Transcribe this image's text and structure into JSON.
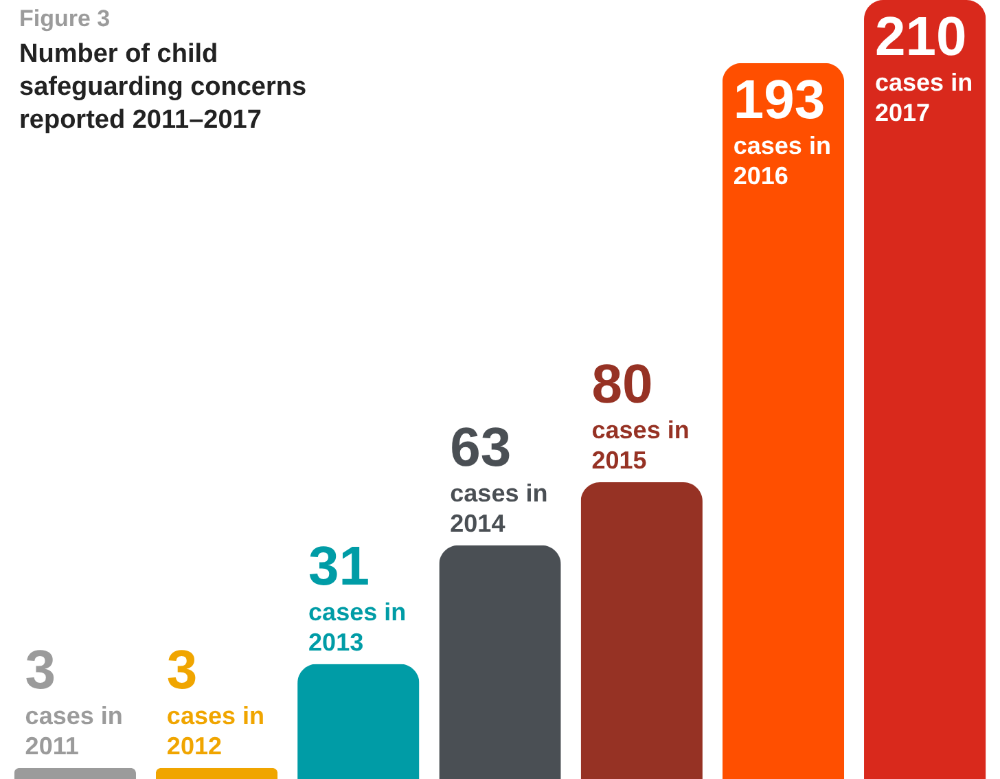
{
  "chart_data": {
    "type": "bar",
    "subtitle": "Figure 3",
    "title": "Number of child safeguarding concerns reported 2011–2017",
    "categories": [
      "cases in 2011",
      "cases in 2012",
      "cases in 2013",
      "cases in 2014",
      "cases in 2015",
      "cases in 2016",
      "cases in 2017"
    ],
    "values": [
      3,
      3,
      31,
      63,
      80,
      193,
      210
    ],
    "colors": [
      "#9b9b9b",
      "#f0a500",
      "#009ca6",
      "#4a4f54",
      "#963224",
      "#ff4f00",
      "#d9291c"
    ],
    "data_labels": true
  }
}
